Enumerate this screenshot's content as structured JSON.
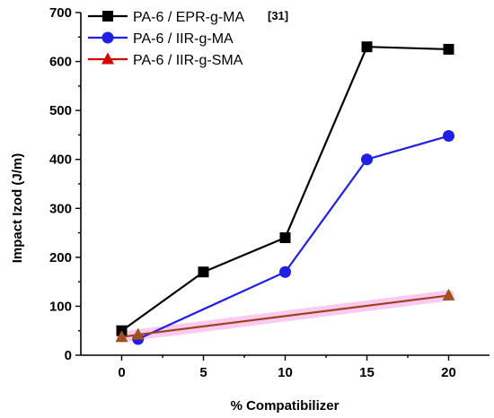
{
  "chart_data": {
    "type": "line",
    "x": [
      0,
      5,
      10,
      15,
      20
    ],
    "xlabel": "% Compatibilizer",
    "ylabel": "Impact Izod (J/m)",
    "xlim": [
      -2.5,
      22.5
    ],
    "ylim": [
      0,
      700
    ],
    "xticks": [
      0,
      5,
      10,
      15,
      20
    ],
    "yticks": [
      0,
      100,
      200,
      300,
      400,
      500,
      600,
      700
    ],
    "grid": false,
    "legend_position": "top-left",
    "reference_note": "[31]",
    "series": [
      {
        "name": "PA-6 / EPR-g-MA",
        "color": "#000000",
        "marker": "square",
        "points": [
          [
            0,
            50
          ],
          [
            5,
            170
          ],
          [
            10,
            240
          ],
          [
            15,
            630
          ],
          [
            20,
            625
          ]
        ]
      },
      {
        "name": "PA-6 / IIR-g-MA",
        "color": "#1f1fe6",
        "marker": "circle",
        "points": [
          [
            1,
            33
          ],
          [
            10,
            170
          ],
          [
            15,
            400
          ],
          [
            20,
            448
          ]
        ]
      },
      {
        "name": "PA-6 / IIR-g-SMA",
        "color": "#d40000",
        "line_color": "#a0421e",
        "marker": "triangle",
        "marker_color": "#a0521e",
        "band_color": "#f5a0e8",
        "points": [
          [
            0,
            37
          ],
          [
            1,
            42
          ],
          [
            20,
            122
          ]
        ]
      }
    ]
  }
}
